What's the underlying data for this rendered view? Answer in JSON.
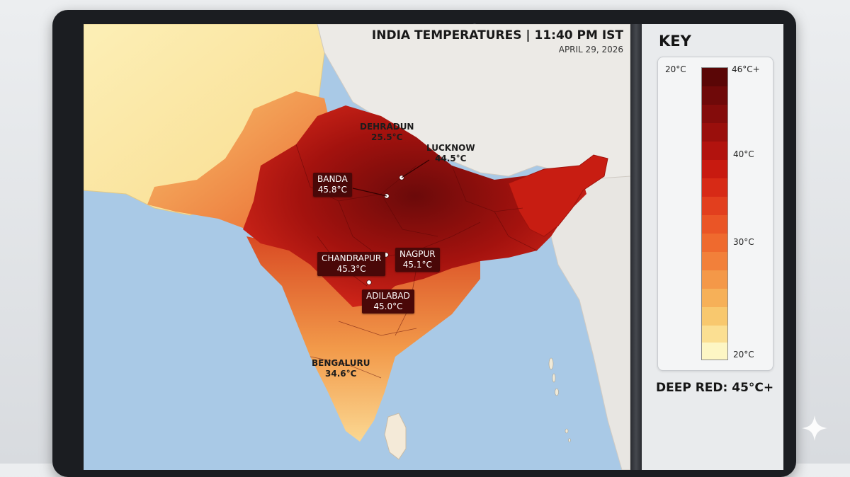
{
  "map": {
    "title": "INDIA TEMPERATURES | 11:40 PM IST",
    "date": "APRIL 29, 2026",
    "cities": [
      {
        "name": "DEHRADUN",
        "temp": "25.5°C"
      },
      {
        "name": "LUCKNOW",
        "temp": "44.5°C"
      },
      {
        "name": "BANDA",
        "temp": "45.8°C"
      },
      {
        "name": "CHANDRAPUR",
        "temp": "45.3°C"
      },
      {
        "name": "NAGPUR",
        "temp": "45.1°C"
      },
      {
        "name": "ADILABAD",
        "temp": "45.0°C"
      },
      {
        "name": "BENGALURU",
        "temp": "34.6°C"
      }
    ]
  },
  "key": {
    "title": "KEY",
    "top_left_label": "20°C",
    "top_right_label": "46°C+",
    "mid_labels": [
      "40°C",
      "30°C"
    ],
    "bottom_label": "20°C",
    "footer": "DEEP RED: 45°C+"
  },
  "colors": {
    "deep_red": "#6b0a0a",
    "red": "#c8190f",
    "orange": "#f0863c",
    "yellow": "#fdf6c4",
    "sea": "#a9c9e6"
  },
  "icons": {
    "corner": "sparkle-icon"
  }
}
